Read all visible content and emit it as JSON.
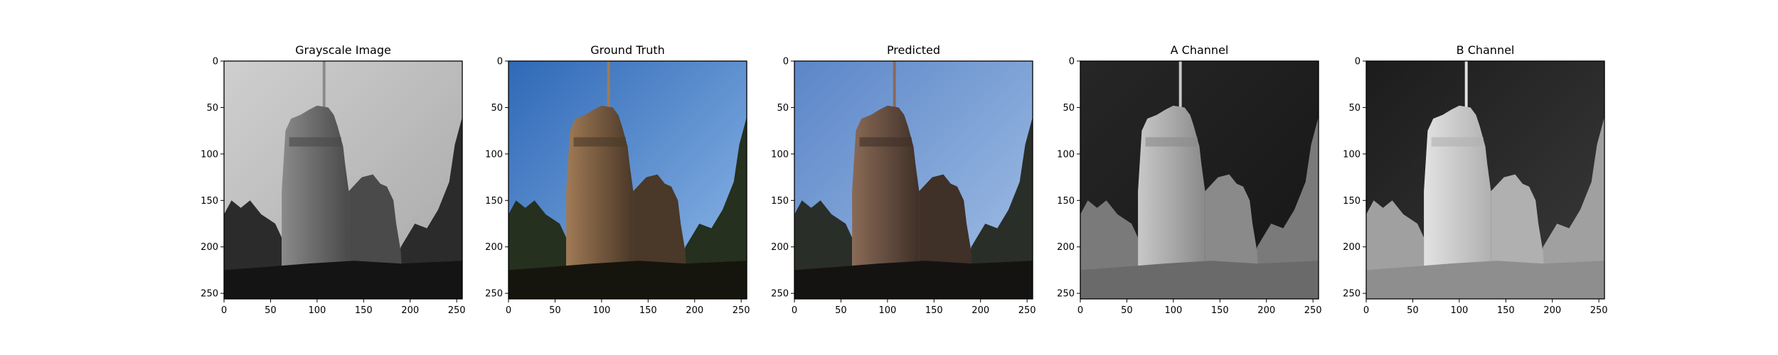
{
  "chart_data": [
    {
      "type": "image",
      "title": "Grayscale Image",
      "xlim": [
        0,
        256
      ],
      "ylim": [
        256,
        0
      ],
      "xticks": [
        0,
        50,
        100,
        150,
        200,
        250
      ],
      "yticks": [
        0,
        50,
        100,
        150,
        200,
        250
      ],
      "colormap": "gray",
      "grid": false,
      "sky_colors": [
        "#cfcfcf",
        "#a8a8a8"
      ],
      "wall_colors": [
        "#8a8a8a",
        "#4a4a4a"
      ],
      "ground_color": "#141414",
      "tree_color": "#2b2b2b"
    },
    {
      "type": "image",
      "title": "Ground Truth",
      "xlim": [
        0,
        256
      ],
      "ylim": [
        256,
        0
      ],
      "xticks": [
        0,
        50,
        100,
        150,
        200,
        250
      ],
      "yticks": [
        0,
        50,
        100,
        150,
        200,
        250
      ],
      "colormap": "rgb",
      "grid": false,
      "sky_colors": [
        "#2f69b7",
        "#8fb8e8"
      ],
      "wall_colors": [
        "#a07a55",
        "#4a3828"
      ],
      "ground_color": "#15150e",
      "tree_color": "#26301f"
    },
    {
      "type": "image",
      "title": "Predicted",
      "xlim": [
        0,
        256
      ],
      "ylim": [
        256,
        0
      ],
      "xticks": [
        0,
        50,
        100,
        150,
        200,
        250
      ],
      "yticks": [
        0,
        50,
        100,
        150,
        200,
        250
      ],
      "colormap": "rgb",
      "grid": false,
      "sky_colors": [
        "#5b86c8",
        "#a3c0e6"
      ],
      "wall_colors": [
        "#8a6a56",
        "#3f3028"
      ],
      "ground_color": "#141312",
      "tree_color": "#2a2e28"
    },
    {
      "type": "image",
      "title": "A Channel",
      "xlim": [
        0,
        256
      ],
      "ylim": [
        256,
        0
      ],
      "xticks": [
        0,
        50,
        100,
        150,
        200,
        250
      ],
      "yticks": [
        0,
        50,
        100,
        150,
        200,
        250
      ],
      "colormap": "gray",
      "grid": false,
      "sky_colors": [
        "#262626",
        "#161616"
      ],
      "wall_colors": [
        "#c8c8c8",
        "#8a8a8a"
      ],
      "ground_color": "#6a6a6a",
      "tree_color": "#7a7a7a"
    },
    {
      "type": "image",
      "title": "B Channel",
      "xlim": [
        0,
        256
      ],
      "ylim": [
        256,
        0
      ],
      "xticks": [
        0,
        50,
        100,
        150,
        200,
        250
      ],
      "yticks": [
        0,
        50,
        100,
        150,
        200,
        250
      ],
      "colormap": "gray",
      "grid": false,
      "sky_colors": [
        "#1c1c1c",
        "#3a3a3a"
      ],
      "wall_colors": [
        "#e2e2e2",
        "#b0b0b0"
      ],
      "ground_color": "#8e8e8e",
      "tree_color": "#a0a0a0"
    }
  ]
}
